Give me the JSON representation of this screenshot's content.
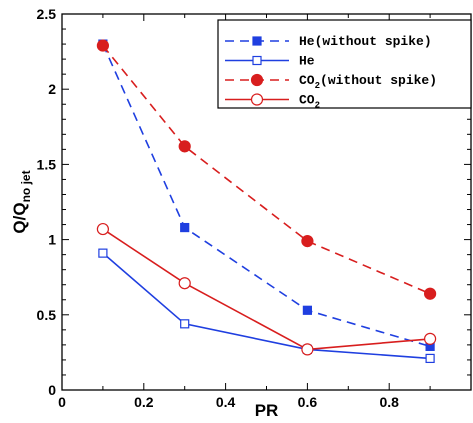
{
  "chart_data": {
    "type": "line",
    "xlabel": "PR",
    "ylabel": {
      "main": "Q/Q",
      "sub": "no jet"
    },
    "xlim": [
      0,
      1.0
    ],
    "ylim": [
      0,
      2.5
    ],
    "xticks": [
      0,
      0.2,
      0.4,
      0.6,
      0.8
    ],
    "xtick_labels": [
      "0",
      "0.2",
      "0.4",
      "0.6",
      "0.8"
    ],
    "yticks": [
      0,
      0.5,
      1,
      1.5,
      2,
      2.5
    ],
    "ytick_labels": [
      "0",
      "0.5",
      "1",
      "1.5",
      "2",
      "2.5"
    ],
    "grid": false,
    "legend_position": "top-right",
    "series": [
      {
        "name": "He(without spike)",
        "legend_text": {
          "main": "He(without spike)"
        },
        "color": "#1f3fe0",
        "line": "dashed",
        "marker": "square",
        "filled": true,
        "x": [
          0.1,
          0.3,
          0.6,
          0.9
        ],
        "y": [
          2.3,
          1.08,
          0.53,
          0.29
        ]
      },
      {
        "name": "He",
        "legend_text": {
          "main": "He"
        },
        "color": "#1f3fe0",
        "line": "solid",
        "marker": "square",
        "filled": false,
        "x": [
          0.1,
          0.3,
          0.6,
          0.9
        ],
        "y": [
          0.91,
          0.44,
          0.27,
          0.21
        ]
      },
      {
        "name": "CO2(without spike)",
        "legend_text": {
          "pre": "CO",
          "sub": "2",
          "post": "(without spike)"
        },
        "color": "#d81e1e",
        "line": "dashed",
        "marker": "circle",
        "filled": true,
        "x": [
          0.1,
          0.3,
          0.6,
          0.9
        ],
        "y": [
          2.29,
          1.62,
          0.99,
          0.64
        ]
      },
      {
        "name": "CO2",
        "legend_text": {
          "pre": "CO",
          "sub": "2",
          "post": ""
        },
        "color": "#d81e1e",
        "line": "solid",
        "marker": "circle",
        "filled": false,
        "x": [
          0.1,
          0.3,
          0.6,
          0.9
        ],
        "y": [
          1.07,
          0.71,
          0.27,
          0.34
        ]
      }
    ]
  }
}
